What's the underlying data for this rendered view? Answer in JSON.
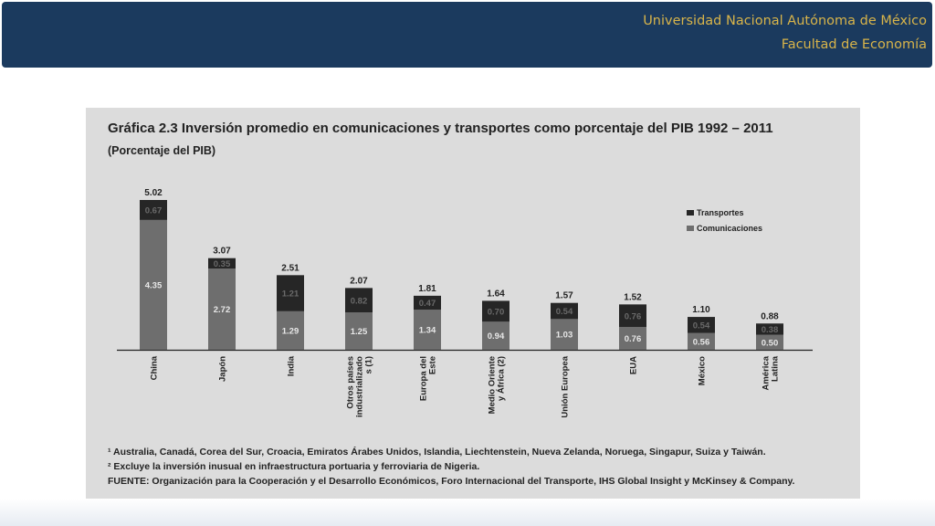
{
  "header": {
    "line1": "Universidad Nacional Autónoma de México",
    "line2": "Facultad de Economía"
  },
  "figure": {
    "title": "Gráfica 2.3 Inversión promedio en comunicaciones y transportes como porcentaje del PIB 1992 – 2011",
    "subtitle": "(Porcentaje del PIB)",
    "notes": [
      "¹ Australia, Canadá, Corea del Sur, Croacia, Emiratos Árabes Unidos, Islandia, Liechtenstein, Nueva Zelanda, Noruega, Singapur, Suiza y Taiwán.",
      "² Excluye la inversión inusual en infraestructura portuaria y ferroviaria de Nigeria.",
      "FUENTE: Organización para la Cooperación y el Desarrollo Económicos, Foro Internacional del Transporte, IHS Global Insight y McKinsey & Company."
    ]
  },
  "chart_data": {
    "type": "bar",
    "stacked": true,
    "categories": [
      "China",
      "Japón",
      "India",
      "Otros países industrializado s (1)",
      "Europa del Este",
      "Medio Oriente y África (2)",
      "Unión Europea",
      "EUA",
      "México",
      "América Latina"
    ],
    "series": [
      {
        "name": "Comunicaciones",
        "values": [
          4.35,
          2.72,
          1.29,
          1.25,
          1.34,
          0.94,
          1.03,
          0.76,
          0.56,
          0.5
        ],
        "labels": [
          "4.35",
          "2.72",
          "1.29",
          "1.25",
          "1.34",
          "0.94",
          "1.03",
          "0.76",
          "0.56",
          "0.50"
        ],
        "color": "#6e6e6e"
      },
      {
        "name": "Transportes",
        "values": [
          0.67,
          0.35,
          1.21,
          0.82,
          0.47,
          0.7,
          0.54,
          0.76,
          0.54,
          0.38
        ],
        "labels": [
          "0.67",
          "0.35",
          "1.21",
          "0.82",
          "0.47",
          "0.70",
          "0.54",
          "0.76",
          "0.54",
          "0.38"
        ],
        "color": "#262626"
      }
    ],
    "totals": [
      "5.02",
      "3.07",
      "2.51",
      "2.07",
      "1.81",
      "1.64",
      "1.57",
      "1.52",
      "1.10",
      "0.88"
    ],
    "ylim": [
      0,
      5.02
    ],
    "legend_position": "top-right",
    "grid": false
  }
}
